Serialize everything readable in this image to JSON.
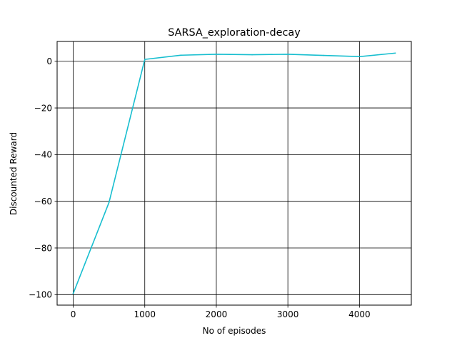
{
  "chart_data": {
    "type": "line",
    "title": "SARSA_exploration-decay",
    "xlabel": "No of episodes",
    "ylabel": "Discounted Reward",
    "xlim": [
      -225,
      4725
    ],
    "ylim": [
      -104.5,
      8.5
    ],
    "grid": true,
    "x_ticks": [
      0,
      1000,
      2000,
      3000,
      4000
    ],
    "x_tick_labels": [
      "0",
      "1000",
      "2000",
      "3000",
      "4000"
    ],
    "y_ticks": [
      0,
      -20,
      -40,
      -60,
      -80,
      -100
    ],
    "y_tick_labels": [
      "0",
      "−20",
      "−40",
      "−60",
      "−80",
      "−100"
    ],
    "series": [
      {
        "color": "#17becf",
        "x": [
          0,
          500,
          1000,
          1500,
          2000,
          2500,
          3000,
          3500,
          4000,
          4500
        ],
        "y": [
          -99.5,
          -60.5,
          0.8,
          2.6,
          3.0,
          2.8,
          3.0,
          2.5,
          2.0,
          3.5
        ]
      }
    ]
  }
}
